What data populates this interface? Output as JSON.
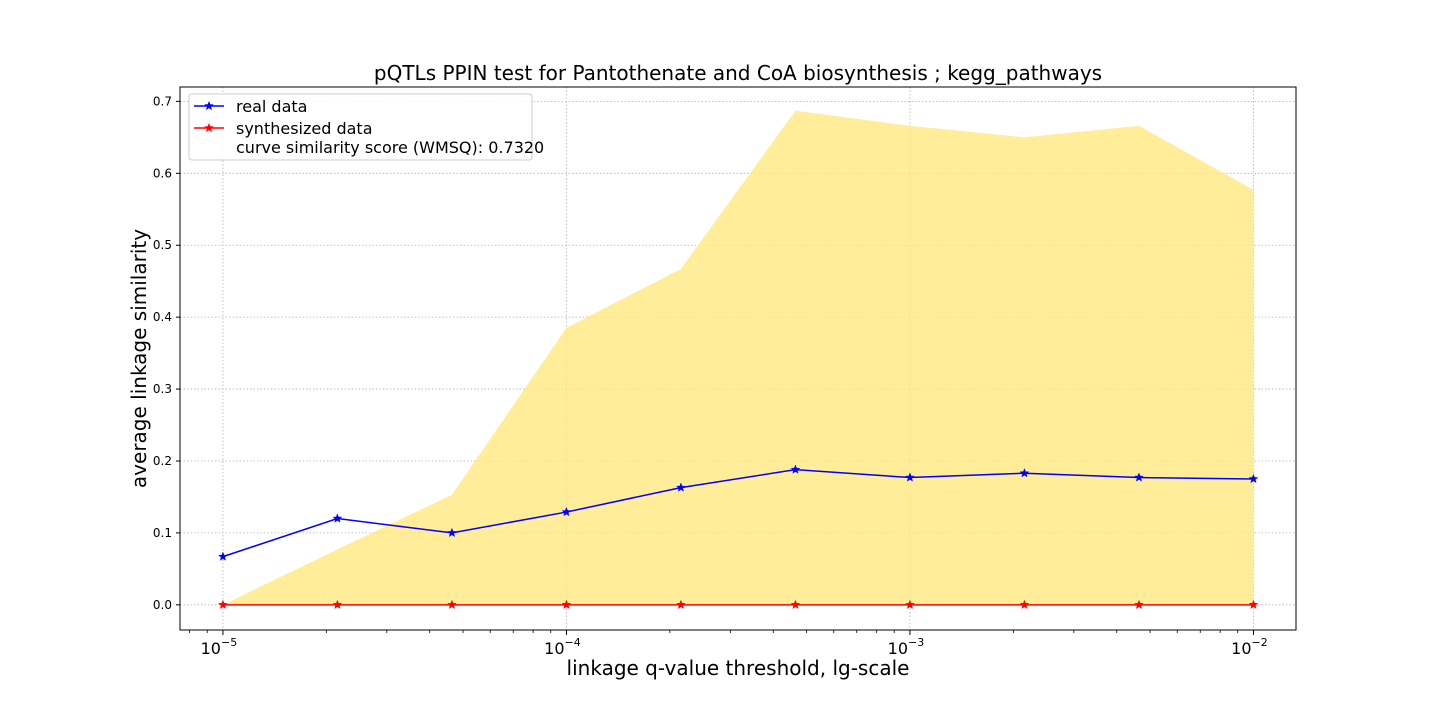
{
  "chart_data": {
    "type": "line",
    "title": "pQTLs PPIN test for Pantothenate and CoA biosynthesis ; kegg_pathways",
    "xlabel": "linkage q-value threshold, lg-scale",
    "ylabel": "average linkage similarity",
    "x_scale": "log",
    "xlim": [
      7.5e-06,
      0.0133
    ],
    "ylim": [
      -0.035,
      0.72
    ],
    "grid": true,
    "legend_position": "top-left",
    "x_ticks": [
      {
        "base": "10",
        "exp": "−5",
        "value": 1e-05
      },
      {
        "base": "10",
        "exp": "−4",
        "value": 0.0001
      },
      {
        "base": "10",
        "exp": "−3",
        "value": 0.001
      },
      {
        "base": "10",
        "exp": "−2",
        "value": 0.01
      }
    ],
    "y_ticks": [
      "0.0",
      "0.1",
      "0.2",
      "0.3",
      "0.4",
      "0.5",
      "0.6",
      "0.7"
    ],
    "x": [
      1e-05,
      2.154e-05,
      4.642e-05,
      0.0001,
      0.0002154,
      0.0004642,
      0.001,
      0.002154,
      0.004642,
      0.01
    ],
    "series": [
      {
        "name": "real data",
        "color": "#0000ff",
        "marker": "star",
        "values": [
          0.067,
          0.12,
          0.1,
          0.129,
          0.163,
          0.188,
          0.177,
          0.183,
          0.177,
          0.175
        ]
      },
      {
        "name": "synthesized data",
        "color": "#ff0000",
        "marker": "star",
        "values": [
          0,
          0,
          0,
          0,
          0,
          0,
          0,
          0,
          0,
          0
        ]
      }
    ],
    "band": {
      "color": "#ffe980",
      "lower": [
        0,
        0,
        0,
        0,
        0,
        0,
        0,
        0,
        0,
        0
      ],
      "upper": [
        0.0,
        0.077,
        0.153,
        0.385,
        0.467,
        0.687,
        0.666,
        0.65,
        0.666,
        0.577
      ]
    },
    "legend_note": "curve similarity score (WMSQ): 0.7320"
  }
}
